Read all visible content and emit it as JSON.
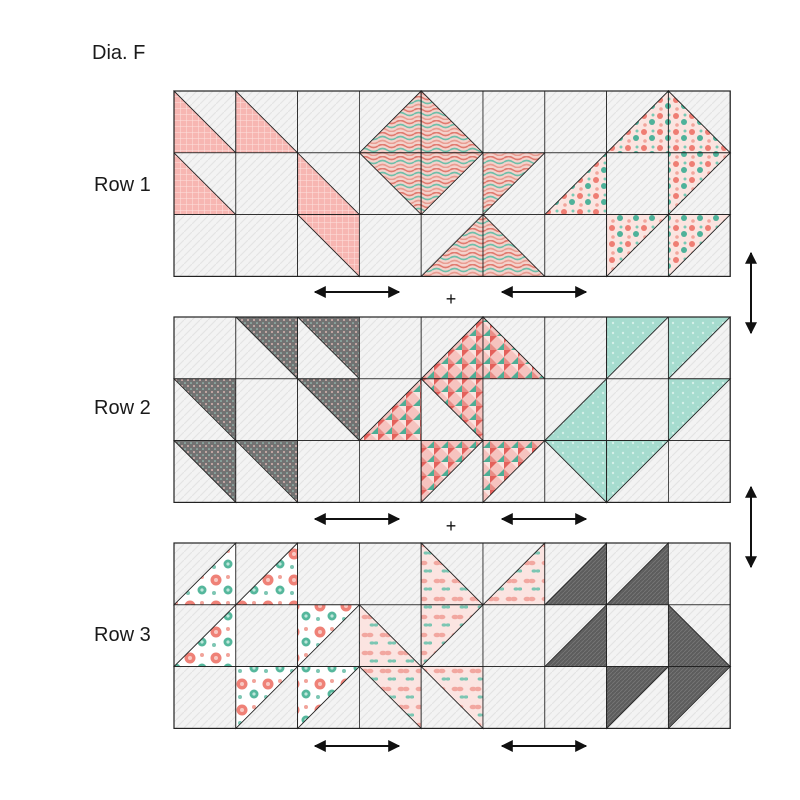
{
  "title": "Dia. F",
  "colors": {
    "background_print": "#f1f1f1",
    "seam": "#222222",
    "arrow": "#111111"
  },
  "rows": [
    {
      "label": "Row 1",
      "fabrics": [
        {
          "name": "pink-grid-print",
          "color": "#f7b7b4",
          "accent": "#fce0de"
        },
        {
          "name": "wavy-stripe-print",
          "color": "#d99a8f",
          "accent": "#7fc5b0"
        },
        {
          "name": "floral-print",
          "color": "#f3a49b",
          "accent": "#4db39a"
        }
      ]
    },
    {
      "label": "Row 2",
      "fabrics": [
        {
          "name": "gray-dot-print",
          "color": "#6e6e6e",
          "accent": "#c98080"
        },
        {
          "name": "geometric-print",
          "color": "#e98a86",
          "accent": "#5fb99f"
        },
        {
          "name": "aqua-print",
          "color": "#a7ddd0",
          "accent": "#d3efe8"
        }
      ]
    },
    {
      "label": "Row  3",
      "fabrics": [
        {
          "name": "large-floral-print",
          "color": "#f6d3cf",
          "accent": "#55b79d"
        },
        {
          "name": "butterfly-print",
          "color": "#f7c7c1",
          "accent": "#79c5b2"
        },
        {
          "name": "dark-gray-print",
          "color": "#5c5c5c",
          "accent": "#8a8a8a"
        }
      ]
    }
  ],
  "join_symbol": "+",
  "rotation_symbol": "↔"
}
